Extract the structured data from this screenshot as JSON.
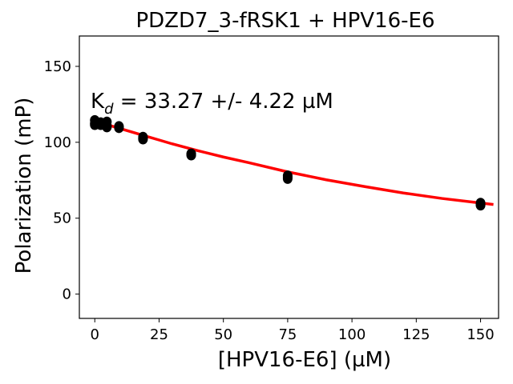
{
  "chart_data": {
    "type": "scatter",
    "title": "PDZD7_3-fRSK1 + HPV16-E6",
    "xlabel": "[HPV16-E6] (µM)",
    "ylabel": "Polarization (mP)",
    "xlim": [
      -6,
      157
    ],
    "ylim": [
      -16,
      170
    ],
    "xticks": [
      0,
      25,
      50,
      75,
      100,
      125,
      150
    ],
    "yticks": [
      0,
      50,
      100,
      150
    ],
    "grid": false,
    "annotation": {
      "prefix": "K",
      "subscript": "d",
      "text": " = 33.27 +/- 4.22 µM"
    },
    "series": [
      {
        "kind": "points",
        "color": "#000000",
        "points": [
          [
            0,
            114.5
          ],
          [
            0,
            112.5
          ],
          [
            0,
            111.5
          ],
          [
            2.3,
            112
          ],
          [
            2.3,
            113
          ],
          [
            2.3,
            111.5
          ],
          [
            4.7,
            113.5
          ],
          [
            4.7,
            111
          ],
          [
            4.7,
            110
          ],
          [
            9.4,
            110
          ],
          [
            9.4,
            109.5
          ],
          [
            9.4,
            110.5
          ],
          [
            18.75,
            103.5
          ],
          [
            18.75,
            102
          ],
          [
            18.75,
            102.5
          ],
          [
            37.5,
            92.5
          ],
          [
            37.5,
            91.5
          ],
          [
            37.5,
            92
          ],
          [
            75,
            78
          ],
          [
            75,
            76
          ],
          [
            75,
            77
          ],
          [
            150,
            60
          ],
          [
            150,
            58.5
          ],
          [
            150,
            59
          ]
        ]
      },
      {
        "kind": "fit-line",
        "color": "#ff0000",
        "points": [
          [
            0,
            114
          ],
          [
            5,
            111.5
          ],
          [
            10,
            109
          ],
          [
            15,
            106.5
          ],
          [
            20,
            104
          ],
          [
            25,
            101.5
          ],
          [
            30,
            99
          ],
          [
            40,
            94.5
          ],
          [
            50,
            90.3
          ],
          [
            60,
            86.5
          ],
          [
            75,
            80.5
          ],
          [
            90,
            75.3
          ],
          [
            105,
            70.8
          ],
          [
            120,
            66.6
          ],
          [
            135,
            63
          ],
          [
            150,
            60
          ],
          [
            155,
            59
          ]
        ]
      }
    ]
  }
}
